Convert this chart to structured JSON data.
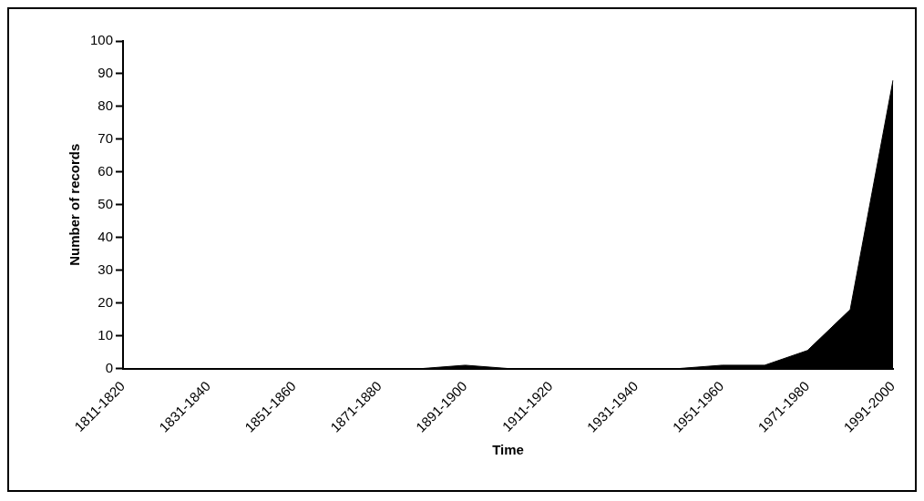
{
  "chart_data": {
    "type": "area",
    "xlabel": "Time",
    "ylabel": "Number of records",
    "categories": [
      "1811-1820",
      null,
      "1831-1840",
      null,
      "1851-1860",
      null,
      "1871-1880",
      null,
      "1891-1900",
      null,
      "1911-1920",
      null,
      "1931-1940",
      null,
      "1951-1960",
      null,
      "1971-1980",
      null,
      "1991-2000"
    ],
    "values": [
      0,
      0,
      0,
      0,
      0,
      0,
      0,
      0,
      1,
      0,
      0,
      0,
      0,
      0,
      1,
      1,
      5.5,
      18,
      88
    ],
    "color": "#000000",
    "ylim": [
      0,
      100
    ],
    "yticks": [
      0,
      10,
      20,
      30,
      40,
      50,
      60,
      70,
      80,
      90,
      100
    ],
    "grid": false,
    "legend": false
  }
}
